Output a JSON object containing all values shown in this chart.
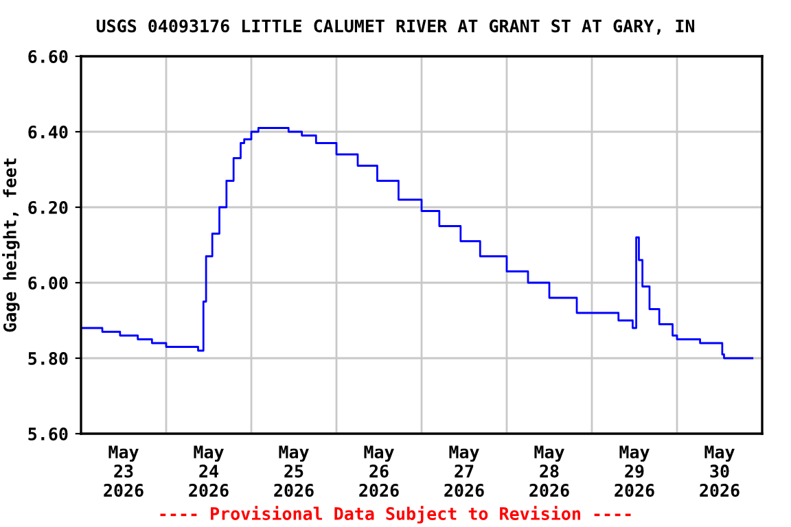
{
  "chart_data": {
    "type": "step",
    "title": "USGS 04093176 LITTLE CALUMET RIVER AT GRANT ST AT GARY, IN",
    "ylabel": "Gage height, feet",
    "annotations": [
      "---- Provisional Data Subject to Revision ----"
    ],
    "x": [
      "2026-05-23T00:00",
      "2026-05-23T06:00",
      "2026-05-23T11:00",
      "2026-05-23T16:00",
      "2026-05-23T20:00",
      "2026-05-24T00:00",
      "2026-05-24T07:30",
      "2026-05-24T09:00",
      "2026-05-24T10:00",
      "2026-05-24T10:30",
      "2026-05-24T11:15",
      "2026-05-24T13:00",
      "2026-05-24T15:00",
      "2026-05-24T17:00",
      "2026-05-24T19:00",
      "2026-05-24T21:00",
      "2026-05-24T22:00",
      "2026-05-25T00:00",
      "2026-05-25T02:00",
      "2026-05-25T08:00",
      "2026-05-25T10:30",
      "2026-05-25T14:15",
      "2026-05-25T18:15",
      "2026-05-26T00:00",
      "2026-05-26T06:00",
      "2026-05-26T11:30",
      "2026-05-26T17:30",
      "2026-05-27T00:00",
      "2026-05-27T05:00",
      "2026-05-27T11:00",
      "2026-05-27T16:30",
      "2026-05-28T00:00",
      "2026-05-28T06:00",
      "2026-05-28T12:00",
      "2026-05-28T19:45",
      "2026-05-29T02:45",
      "2026-05-29T07:30",
      "2026-05-29T11:30",
      "2026-05-29T12:00",
      "2026-05-29T12:30",
      "2026-05-29T13:15",
      "2026-05-29T14:15",
      "2026-05-29T16:15",
      "2026-05-29T19:00",
      "2026-05-29T22:45",
      "2026-05-30T00:00",
      "2026-05-30T06:30",
      "2026-05-30T12:45",
      "2026-05-30T13:15",
      "2026-05-30T21:15"
    ],
    "series": [
      {
        "color": "#0000ff",
        "values": [
          5.88,
          5.87,
          5.86,
          5.85,
          5.84,
          5.83,
          5.83,
          5.82,
          5.82,
          5.95,
          6.07,
          6.13,
          6.2,
          6.27,
          6.33,
          6.37,
          6.38,
          6.4,
          6.41,
          6.41,
          6.4,
          6.39,
          6.37,
          6.34,
          6.31,
          6.27,
          6.22,
          6.19,
          6.15,
          6.11,
          6.07,
          6.03,
          6.0,
          5.96,
          5.92,
          5.92,
          5.9,
          5.88,
          5.88,
          6.12,
          6.06,
          5.99,
          5.93,
          5.89,
          5.86,
          5.85,
          5.84,
          5.81,
          5.8,
          5.8
        ]
      }
    ],
    "xlim": [
      "2026-05-23T00:00",
      "2026-05-31T00:00"
    ],
    "xticks": [
      {
        "value": "2026-05-23T12:00",
        "label": "May\n23\n2026"
      },
      {
        "value": "2026-05-24T12:00",
        "label": "May\n24\n2026"
      },
      {
        "value": "2026-05-25T12:00",
        "label": "May\n25\n2026"
      },
      {
        "value": "2026-05-26T12:00",
        "label": "May\n26\n2026"
      },
      {
        "value": "2026-05-27T12:00",
        "label": "May\n27\n2026"
      },
      {
        "value": "2026-05-28T12:00",
        "label": "May\n28\n2026"
      },
      {
        "value": "2026-05-29T12:00",
        "label": "May\n29\n2026"
      },
      {
        "value": "2026-05-30T12:00",
        "label": "May\n30\n2026"
      },
      {
        "value": "2026-05-24T00:00",
        "label": null
      },
      {
        "value": "2026-05-25T00:00",
        "label": null
      },
      {
        "value": "2026-05-26T00:00",
        "label": null
      },
      {
        "value": "2026-05-27T00:00",
        "label": null
      },
      {
        "value": "2026-05-28T00:00",
        "label": null
      },
      {
        "value": "2026-05-29T00:00",
        "label": null
      },
      {
        "value": "2026-05-30T00:00",
        "label": null
      }
    ],
    "ylim": [
      5.6,
      6.6
    ],
    "yticks": [
      {
        "value": 5.6,
        "label": "5.60"
      },
      {
        "value": 5.8,
        "label": "5.80"
      },
      {
        "value": 6.0,
        "label": "6.00"
      },
      {
        "value": 6.2,
        "label": "6.20"
      },
      {
        "value": 6.4,
        "label": "6.40"
      },
      {
        "value": 6.6,
        "label": "6.60"
      }
    ],
    "grid": true,
    "legend": false
  }
}
